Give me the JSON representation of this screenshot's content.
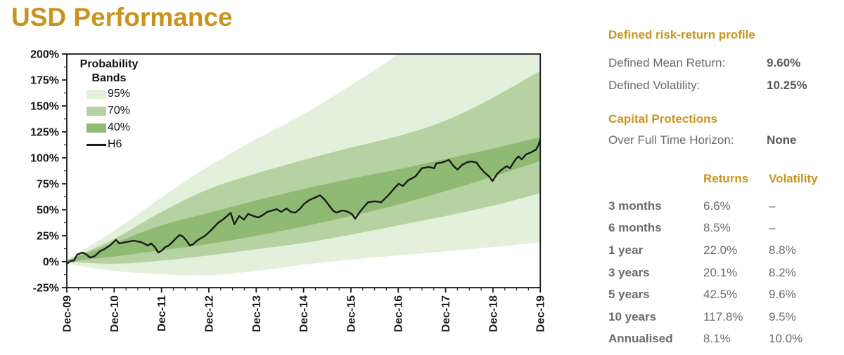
{
  "page_title": "USD Performance",
  "theme": {
    "gold": "#C8941E",
    "band95_color": "#e3f1dc",
    "band70_color": "#b7d2a2",
    "band40_color": "#8eba74",
    "line_color": "#1a1a1a",
    "label_gray": "#6b6b6b",
    "value_gray": "#595959"
  },
  "chart_data": {
    "type": "area",
    "title": "USD Performance",
    "xlim": [
      0,
      10
    ],
    "ylim": [
      -25,
      200
    ],
    "grid": false,
    "legend_position": "top-left-inside",
    "legend": {
      "title_line1": "Probability",
      "title_line2": "Bands",
      "items": [
        {
          "label": "95%",
          "kind": "band"
        },
        {
          "label": "70%",
          "kind": "band"
        },
        {
          "label": "40%",
          "kind": "band"
        },
        {
          "label": "H6",
          "kind": "line"
        }
      ]
    },
    "x_ticks": [
      {
        "t": 0,
        "label": "Dec-09"
      },
      {
        "t": 1,
        "label": "Dec-10"
      },
      {
        "t": 2,
        "label": "Dec-11"
      },
      {
        "t": 3,
        "label": "Dec-12"
      },
      {
        "t": 4,
        "label": "Dec-13"
      },
      {
        "t": 5,
        "label": "Dec-14"
      },
      {
        "t": 6,
        "label": "Dec-15"
      },
      {
        "t": 7,
        "label": "Dec-16"
      },
      {
        "t": 8,
        "label": "Dec-17"
      },
      {
        "t": 9,
        "label": "Dec-18"
      },
      {
        "t": 10,
        "label": "Dec-19"
      }
    ],
    "y_ticks": [
      {
        "v": -25,
        "label": "-25%"
      },
      {
        "v": 0,
        "label": "0%"
      },
      {
        "v": 25,
        "label": "25%"
      },
      {
        "v": 50,
        "label": "50%"
      },
      {
        "v": 75,
        "label": "75%"
      },
      {
        "v": 100,
        "label": "100%"
      },
      {
        "v": 125,
        "label": "125%"
      },
      {
        "v": 150,
        "label": "150%"
      },
      {
        "v": 175,
        "label": "175%"
      },
      {
        "v": 200,
        "label": "200%"
      }
    ],
    "bands": {
      "t": [
        0,
        1,
        2,
        3,
        4,
        5,
        6,
        7,
        8,
        9,
        10
      ],
      "upper95": [
        2,
        30,
        62,
        92,
        118,
        142,
        170,
        200,
        238,
        272,
        308
      ],
      "upper70": [
        1,
        22,
        48,
        70,
        85,
        98,
        110,
        121,
        136,
        158,
        184
      ],
      "upper40": [
        1,
        18,
        35,
        47,
        59,
        70,
        80,
        89,
        99,
        109,
        120
      ],
      "lower40": [
        0,
        5,
        11,
        17,
        25,
        34,
        44,
        55,
        68,
        82,
        97
      ],
      "lower70": [
        0,
        -2,
        1,
        6,
        12,
        18,
        26,
        35,
        44,
        54,
        66
      ],
      "lower95": [
        -2,
        -9,
        -12,
        -13,
        -9,
        -3,
        2,
        6,
        10,
        14,
        19
      ]
    },
    "series": [
      {
        "name": "H6",
        "points": [
          [
            0,
            -2
          ],
          [
            0.07,
            0.5
          ],
          [
            0.15,
            1
          ],
          [
            0.22,
            6.8
          ],
          [
            0.33,
            8.8
          ],
          [
            0.4,
            7.4
          ],
          [
            0.49,
            4
          ],
          [
            0.59,
            5.4
          ],
          [
            0.7,
            10
          ],
          [
            0.79,
            12
          ],
          [
            0.92,
            16
          ],
          [
            1.04,
            21
          ],
          [
            1.11,
            17.6
          ],
          [
            1.26,
            18.9
          ],
          [
            1.41,
            20.3
          ],
          [
            1.56,
            18.9
          ],
          [
            1.63,
            17.6
          ],
          [
            1.71,
            15.5
          ],
          [
            1.78,
            17.6
          ],
          [
            1.86,
            14.2
          ],
          [
            1.93,
            8.8
          ],
          [
            2.01,
            10.8
          ],
          [
            2.08,
            14.2
          ],
          [
            2.15,
            15.5
          ],
          [
            2.23,
            18.9
          ],
          [
            2.3,
            22.3
          ],
          [
            2.38,
            25.7
          ],
          [
            2.45,
            24.3
          ],
          [
            2.53,
            20.3
          ],
          [
            2.6,
            15.5
          ],
          [
            2.67,
            16.9
          ],
          [
            2.75,
            20.3
          ],
          [
            2.82,
            22.3
          ],
          [
            2.9,
            24.3
          ],
          [
            2.97,
            27
          ],
          [
            3.05,
            30.4
          ],
          [
            3.12,
            33.8
          ],
          [
            3.19,
            37.2
          ],
          [
            3.31,
            41
          ],
          [
            3.46,
            47
          ],
          [
            3.54,
            36
          ],
          [
            3.64,
            44
          ],
          [
            3.74,
            40.5
          ],
          [
            3.83,
            46
          ],
          [
            3.94,
            44
          ],
          [
            4.04,
            42.6
          ],
          [
            4.13,
            44.6
          ],
          [
            4.23,
            48
          ],
          [
            4.34,
            49.3
          ],
          [
            4.43,
            50.6
          ],
          [
            4.53,
            48
          ],
          [
            4.64,
            51.3
          ],
          [
            4.73,
            48
          ],
          [
            4.83,
            47.3
          ],
          [
            4.93,
            51.3
          ],
          [
            5.02,
            56
          ],
          [
            5.13,
            59.5
          ],
          [
            5.23,
            61.5
          ],
          [
            5.35,
            64
          ],
          [
            5.45,
            59.5
          ],
          [
            5.53,
            54.7
          ],
          [
            5.62,
            49.3
          ],
          [
            5.69,
            47.3
          ],
          [
            5.82,
            49.3
          ],
          [
            5.91,
            48.5
          ],
          [
            6.02,
            46
          ],
          [
            6.09,
            41.4
          ],
          [
            6.21,
            49.3
          ],
          [
            6.36,
            57.2
          ],
          [
            6.51,
            58.2
          ],
          [
            6.64,
            57.2
          ],
          [
            6.79,
            64
          ],
          [
            6.94,
            71.8
          ],
          [
            7.01,
            75
          ],
          [
            7.1,
            73
          ],
          [
            7.21,
            78.4
          ],
          [
            7.36,
            82
          ],
          [
            7.5,
            90
          ],
          [
            7.65,
            91.2
          ],
          [
            7.76,
            90
          ],
          [
            7.8,
            94.6
          ],
          [
            7.92,
            95.5
          ],
          [
            8.07,
            98
          ],
          [
            8.17,
            92
          ],
          [
            8.25,
            88.7
          ],
          [
            8.35,
            93.2
          ],
          [
            8.44,
            95.5
          ],
          [
            8.54,
            96.6
          ],
          [
            8.65,
            95.5
          ],
          [
            8.74,
            90
          ],
          [
            8.81,
            86.5
          ],
          [
            8.92,
            82
          ],
          [
            8.99,
            77.7
          ],
          [
            9.09,
            84.5
          ],
          [
            9.18,
            88.5
          ],
          [
            9.29,
            92
          ],
          [
            9.36,
            90
          ],
          [
            9.47,
            98
          ],
          [
            9.54,
            101.4
          ],
          [
            9.61,
            98.6
          ],
          [
            9.7,
            103.4
          ],
          [
            9.81,
            105.4
          ],
          [
            9.91,
            108
          ],
          [
            9.96,
            112
          ],
          [
            10,
            117.8
          ]
        ]
      }
    ]
  },
  "panel": {
    "profile_heading": "Defined risk-return profile",
    "profile_rows": [
      {
        "label": "Defined Mean Return:",
        "value": "9.60%"
      },
      {
        "label": "Defined Volatility:",
        "value": "10.25%"
      }
    ],
    "protections_heading": "Capital Protections",
    "protection_row": {
      "label": "Over Full Time Horizon:",
      "value": "None"
    },
    "table": {
      "headers": [
        "Returns",
        "Volatility"
      ],
      "rows": [
        {
          "label": "3 months",
          "returns": "6.6%",
          "volatility": "–"
        },
        {
          "label": "6 months",
          "returns": "8.5%",
          "volatility": "–"
        },
        {
          "label": "1 year",
          "returns": "22.0%",
          "volatility": "8.8%"
        },
        {
          "label": "3 years",
          "returns": "20.1%",
          "volatility": "8.2%"
        },
        {
          "label": "5 years",
          "returns": "42.5%",
          "volatility": "9.6%"
        },
        {
          "label": "10 years",
          "returns": "117.8%",
          "volatility": "9.5%"
        },
        {
          "label": "Annualised",
          "returns": "8.1%",
          "volatility": "10.0%"
        }
      ]
    }
  }
}
